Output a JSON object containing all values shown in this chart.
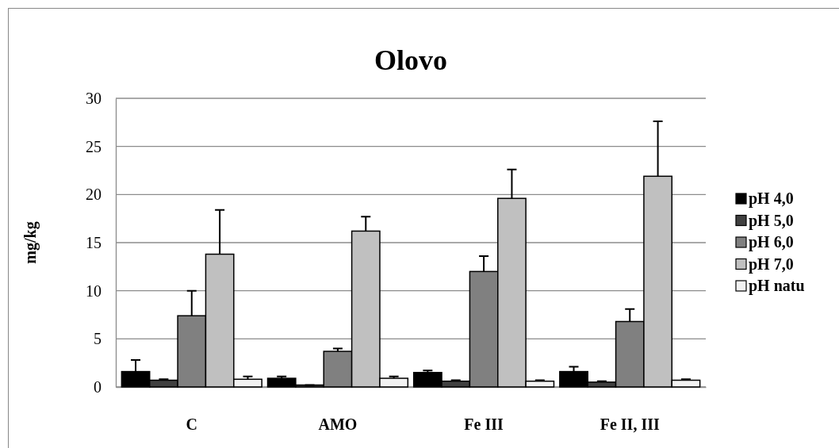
{
  "chart_data": {
    "type": "bar",
    "title": "Olovo",
    "ylabel": "mg/kg",
    "categories": [
      "C",
      "AMO",
      "Fe III",
      "Fe II, III"
    ],
    "series": [
      {
        "name": "pH 4,0",
        "color": "#000000",
        "values": [
          1.6,
          0.9,
          1.5,
          1.6
        ],
        "errors": [
          [
            1.6,
            2.8
          ],
          [
            0.9,
            1.1
          ],
          [
            1.5,
            1.7
          ],
          [
            1.6,
            2.1
          ]
        ]
      },
      {
        "name": "pH 5,0",
        "color": "#404040",
        "values": [
          0.7,
          0.2,
          0.6,
          0.5
        ],
        "errors": [
          [
            0.7,
            0.8
          ],
          [
            0.2,
            0.2
          ],
          [
            0.6,
            0.7
          ],
          [
            0.5,
            0.6
          ]
        ]
      },
      {
        "name": "pH 6,0",
        "color": "#808080",
        "values": [
          7.4,
          3.7,
          12.0,
          6.8
        ],
        "errors": [
          [
            7.4,
            10.0
          ],
          [
            3.7,
            4.0
          ],
          [
            12.0,
            13.6
          ],
          [
            6.8,
            8.1
          ]
        ]
      },
      {
        "name": "pH 7,0",
        "color": "#c0c0c0",
        "values": [
          13.8,
          16.2,
          19.6,
          21.9
        ],
        "errors": [
          [
            13.8,
            18.4
          ],
          [
            16.2,
            17.7
          ],
          [
            19.6,
            22.6
          ],
          [
            21.9,
            27.6
          ]
        ]
      },
      {
        "name": "pH natu",
        "color": "#f2f2f2",
        "values": [
          0.8,
          0.9,
          0.6,
          0.7
        ],
        "errors": [
          [
            0.8,
            1.1
          ],
          [
            0.9,
            1.1
          ],
          [
            0.6,
            0.7
          ],
          [
            0.7,
            0.8
          ]
        ]
      }
    ],
    "ylim": [
      0,
      30
    ],
    "yticks": [
      0,
      5,
      10,
      15,
      20,
      25,
      30
    ],
    "grid": "y",
    "legend": "right"
  }
}
